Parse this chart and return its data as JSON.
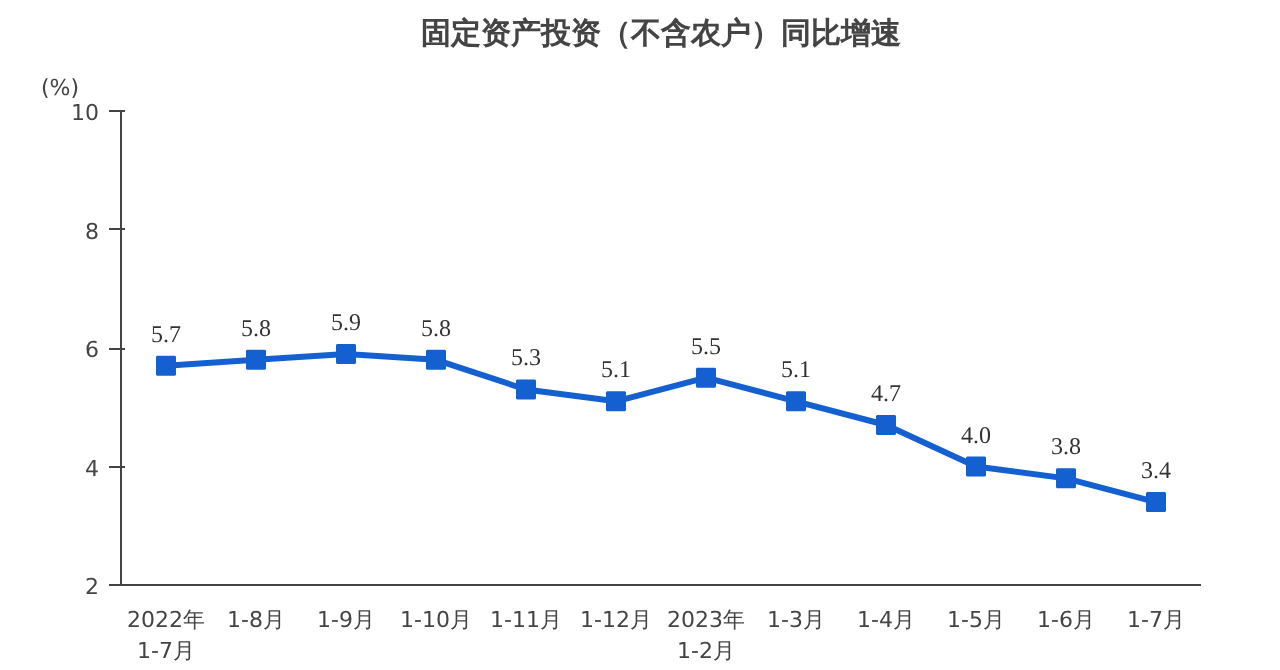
{
  "chart_data": {
    "type": "line",
    "title": "固定资产投资（不含农户）同比增速",
    "ylabel": "(%)",
    "categories": [
      "2022年\n1-7月",
      "1-8月",
      "1-9月",
      "1-10月",
      "1-11月",
      "1-12月",
      "2023年\n1-2月",
      "1-3月",
      "1-4月",
      "1-5月",
      "1-6月",
      "1-7月"
    ],
    "series": [
      {
        "color": "#1560d0",
        "values": [
          5.7,
          5.8,
          5.9,
          5.8,
          5.3,
          5.1,
          5.5,
          5.1,
          4.7,
          4.0,
          3.8,
          3.4
        ],
        "value_labels": [
          "5.7",
          "5.8",
          "5.9",
          "5.8",
          "5.3",
          "5.1",
          "5.5",
          "5.1",
          "4.7",
          "4.0",
          "3.8",
          "3.4"
        ]
      }
    ],
    "ylim": [
      2,
      10
    ],
    "yticks": [
      2,
      4,
      6,
      8,
      10
    ],
    "grid": false,
    "marker": "square",
    "line_style": "solid"
  }
}
